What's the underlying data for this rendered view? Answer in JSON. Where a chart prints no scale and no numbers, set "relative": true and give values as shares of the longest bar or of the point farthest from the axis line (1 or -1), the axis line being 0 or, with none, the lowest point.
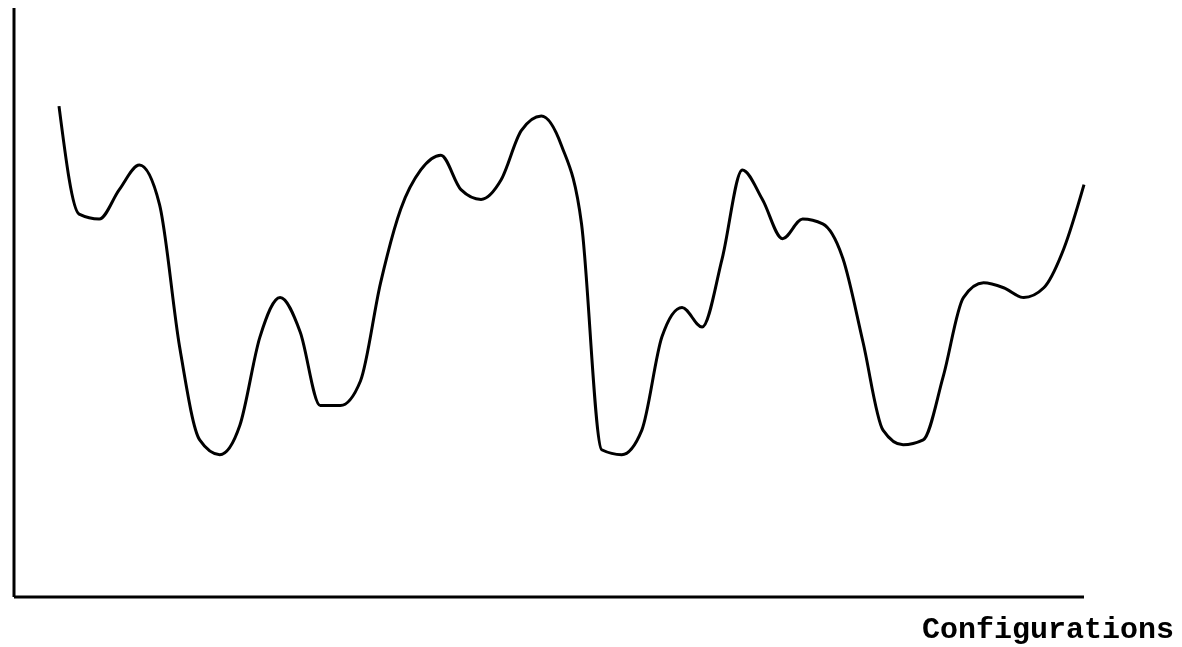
{
  "chart_data": {
    "type": "line",
    "xlabel": "Configurations",
    "relative": true,
    "categories": [
      null,
      null,
      null,
      null,
      null,
      null,
      null,
      null,
      null,
      null,
      null,
      null,
      null,
      null,
      null,
      null,
      null,
      null,
      null,
      null,
      null,
      null,
      null,
      null,
      null,
      null,
      null,
      null,
      null,
      null,
      null,
      null,
      null,
      null,
      null,
      null,
      null,
      null,
      null,
      null,
      null,
      null,
      null,
      null,
      null,
      null,
      null,
      null,
      null,
      null,
      null,
      null
    ],
    "series": [
      {
        "color": "#000000",
        "values": [
          1,
          0.78,
          0.77,
          0.83,
          0.88,
          0.8,
          0.51,
          0.32,
          0.29,
          0.35,
          0.53,
          0.61,
          0.54,
          0.39,
          0.39,
          0.44,
          0.64,
          0.79,
          0.87,
          0.9,
          0.83,
          0.81,
          0.85,
          0.95,
          0.98,
          0.92,
          0.76,
          0.3,
          0.29,
          0.34,
          0.53,
          0.59,
          0.55,
          0.69,
          0.87,
          0.81,
          0.73,
          0.77,
          0.76,
          0.69,
          0.52,
          0.34,
          0.31,
          0.32,
          0.45,
          0.61,
          0.64,
          0.63,
          0.61,
          0.63,
          0.71,
          0.84
        ]
      }
    ],
    "grid": false,
    "legend": false,
    "marker": "none",
    "line_style": "solid"
  }
}
